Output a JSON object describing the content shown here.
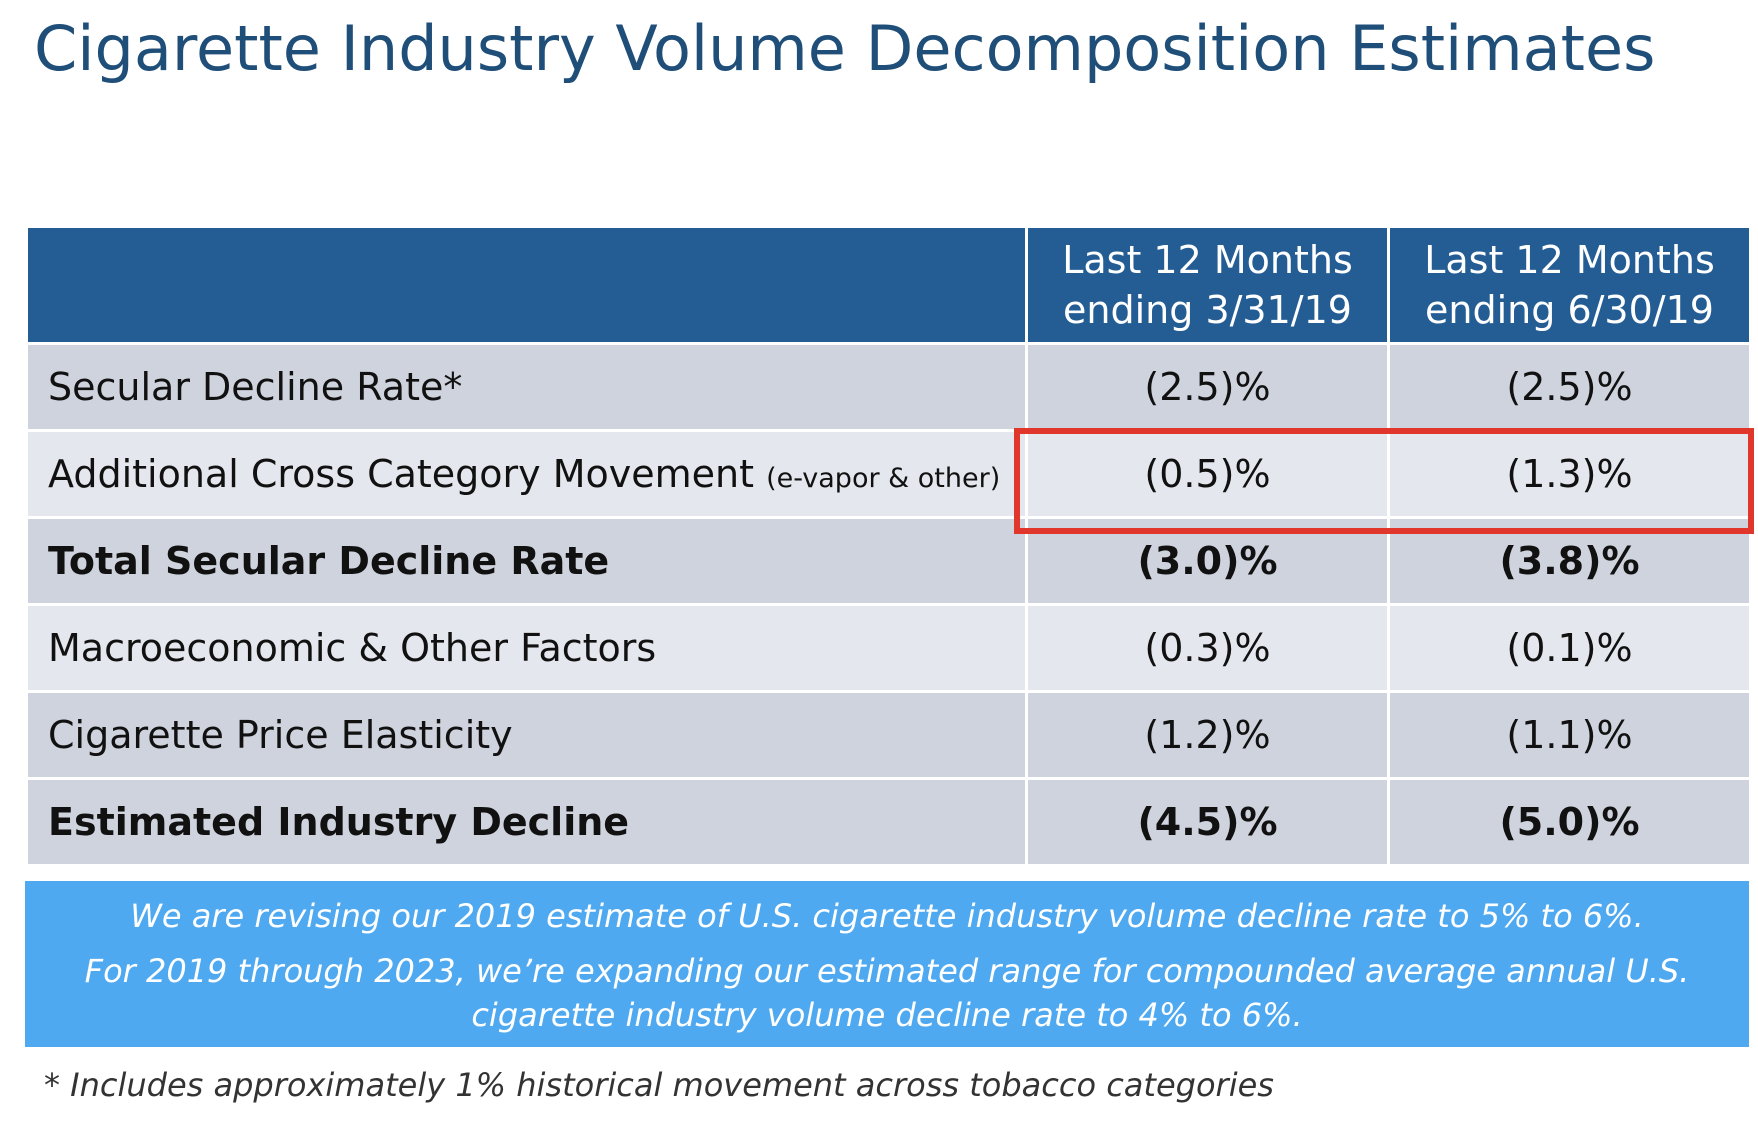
{
  "title": "Cigarette Industry Volume Decomposition Estimates",
  "table": {
    "headers": [
      "",
      "Last 12 Months ending 3/31/19",
      "Last 12 Months ending 6/30/19"
    ],
    "rows": [
      {
        "label": "Secular Decline Rate*",
        "label_note": "",
        "v1": "(2.5)%",
        "v2": "(2.5)%",
        "bold": false
      },
      {
        "label": "Additional Cross Category Movement",
        "label_note": "(e-vapor & other)",
        "v1": "(0.5)%",
        "v2": "(1.3)%",
        "bold": false,
        "highlighted": true
      },
      {
        "label": "Total Secular Decline Rate",
        "label_note": "",
        "v1": "(3.0)%",
        "v2": "(3.8)%",
        "bold": true
      },
      {
        "label": "Macroeconomic & Other Factors",
        "label_note": "",
        "v1": "(0.3)%",
        "v2": "(0.1)%",
        "bold": false
      },
      {
        "label": "Cigarette Price Elasticity",
        "label_note": "",
        "v1": "(1.2)%",
        "v2": "(1.1)%",
        "bold": false
      },
      {
        "label": "Estimated Industry Decline",
        "label_note": "",
        "v1": "(4.5)%",
        "v2": "(5.0)%",
        "bold": true
      }
    ]
  },
  "note": {
    "line1": "We are revising our 2019 estimate of U.S. cigarette industry volume decline rate to 5% to 6%.",
    "line2": "For 2019 through 2023, we’re expanding our estimated range for compounded average annual U.S. cigarette industry volume decline rate to 4% to 6%."
  },
  "footnote": "* Includes approximately 1% historical movement across tobacco categories",
  "colors": {
    "title": "#1f4e79",
    "header_bg": "#245d94",
    "row_dark": "#cfd3dd",
    "row_light": "#e4e7ed",
    "highlight_border": "#e0362b",
    "note_bg": "#4fa9f1"
  }
}
